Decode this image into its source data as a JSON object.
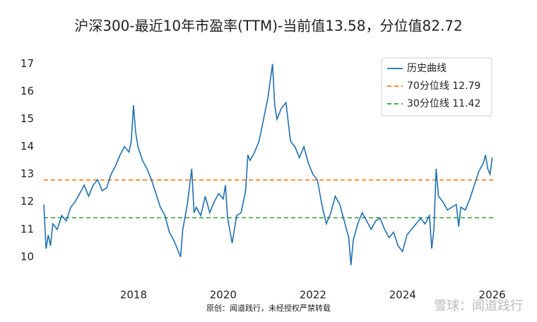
{
  "chart_data": {
    "type": "line",
    "title": "沪深300-最近10年市盈率(TTM)-当前值13.58，分位值82.72",
    "source": "原创：闻道践行，未经授权严禁转载",
    "watermark": "雪球：闻道践行",
    "xlim": [
      2016,
      2026.1
    ],
    "xticks": [
      2018,
      2020,
      2022,
      2024,
      2026
    ],
    "ylim": [
      9.2,
      17.4
    ],
    "yticks": [
      10,
      11,
      12,
      13,
      14,
      15,
      16,
      17
    ],
    "legend": "upper right",
    "series": [
      {
        "name": "历史曲线",
        "color": "#1f6fb0",
        "x": [
          2016.0,
          2016.05,
          2016.1,
          2016.15,
          2016.2,
          2016.3,
          2016.4,
          2016.5,
          2016.6,
          2016.7,
          2016.8,
          2016.9,
          2017.0,
          2017.1,
          2017.2,
          2017.3,
          2017.4,
          2017.5,
          2017.6,
          2017.7,
          2017.8,
          2017.9,
          2017.95,
          2018.0,
          2018.05,
          2018.1,
          2018.2,
          2018.3,
          2018.4,
          2018.5,
          2018.6,
          2018.7,
          2018.8,
          2018.9,
          2019.0,
          2019.05,
          2019.1,
          2019.2,
          2019.3,
          2019.35,
          2019.4,
          2019.5,
          2019.6,
          2019.7,
          2019.8,
          2019.9,
          2020.0,
          2020.05,
          2020.1,
          2020.2,
          2020.3,
          2020.4,
          2020.5,
          2020.55,
          2020.6,
          2020.7,
          2020.8,
          2020.9,
          2021.0,
          2021.1,
          2021.15,
          2021.2,
          2021.3,
          2021.4,
          2021.5,
          2021.6,
          2021.7,
          2021.8,
          2021.9,
          2022.0,
          2022.1,
          2022.2,
          2022.3,
          2022.4,
          2022.5,
          2022.6,
          2022.7,
          2022.8,
          2022.85,
          2022.9,
          2023.0,
          2023.1,
          2023.2,
          2023.3,
          2023.4,
          2023.5,
          2023.6,
          2023.7,
          2023.8,
          2023.9,
          2024.0,
          2024.05,
          2024.1,
          2024.2,
          2024.3,
          2024.4,
          2024.5,
          2024.6,
          2024.65,
          2024.7,
          2024.75,
          2024.8,
          2024.9,
          2025.0,
          2025.1,
          2025.2,
          2025.25,
          2025.3,
          2025.4,
          2025.5,
          2025.6,
          2025.7,
          2025.8,
          2025.85,
          2025.9,
          2025.95,
          2026.0
        ],
        "values": [
          11.9,
          10.3,
          10.8,
          10.4,
          11.2,
          11.0,
          11.5,
          11.3,
          11.8,
          12.0,
          12.3,
          12.6,
          12.2,
          12.6,
          12.8,
          12.4,
          12.5,
          13.0,
          13.3,
          13.7,
          14.0,
          13.8,
          14.2,
          15.5,
          14.5,
          14.0,
          13.5,
          13.2,
          12.8,
          12.3,
          11.8,
          11.5,
          10.9,
          10.6,
          10.2,
          10.0,
          11.0,
          11.9,
          13.2,
          11.6,
          11.8,
          11.5,
          12.2,
          11.6,
          12.0,
          12.3,
          12.1,
          12.6,
          11.4,
          10.5,
          11.5,
          11.6,
          12.4,
          13.7,
          13.5,
          13.8,
          14.2,
          15.0,
          15.8,
          17.0,
          15.5,
          15.0,
          15.4,
          15.6,
          14.2,
          14.0,
          13.6,
          14.0,
          13.4,
          13.0,
          12.8,
          11.9,
          11.2,
          11.6,
          12.2,
          11.9,
          11.3,
          10.7,
          9.7,
          10.6,
          11.2,
          11.6,
          11.3,
          11.0,
          11.3,
          11.4,
          11.0,
          10.7,
          10.9,
          10.4,
          10.2,
          10.5,
          10.8,
          11.0,
          11.2,
          11.4,
          11.2,
          11.5,
          10.3,
          11.0,
          13.2,
          12.2,
          12.0,
          11.7,
          11.8,
          11.9,
          11.1,
          11.8,
          11.7,
          12.1,
          12.6,
          13.1,
          13.4,
          13.7,
          13.2,
          13.0,
          13.6
        ]
      }
    ],
    "reference_lines": [
      {
        "name": "70分位线 12.79",
        "value": 12.79,
        "color": "#ff7f0e"
      },
      {
        "name": "30分位线 11.42",
        "value": 11.42,
        "color": "#2ca02c"
      }
    ]
  }
}
